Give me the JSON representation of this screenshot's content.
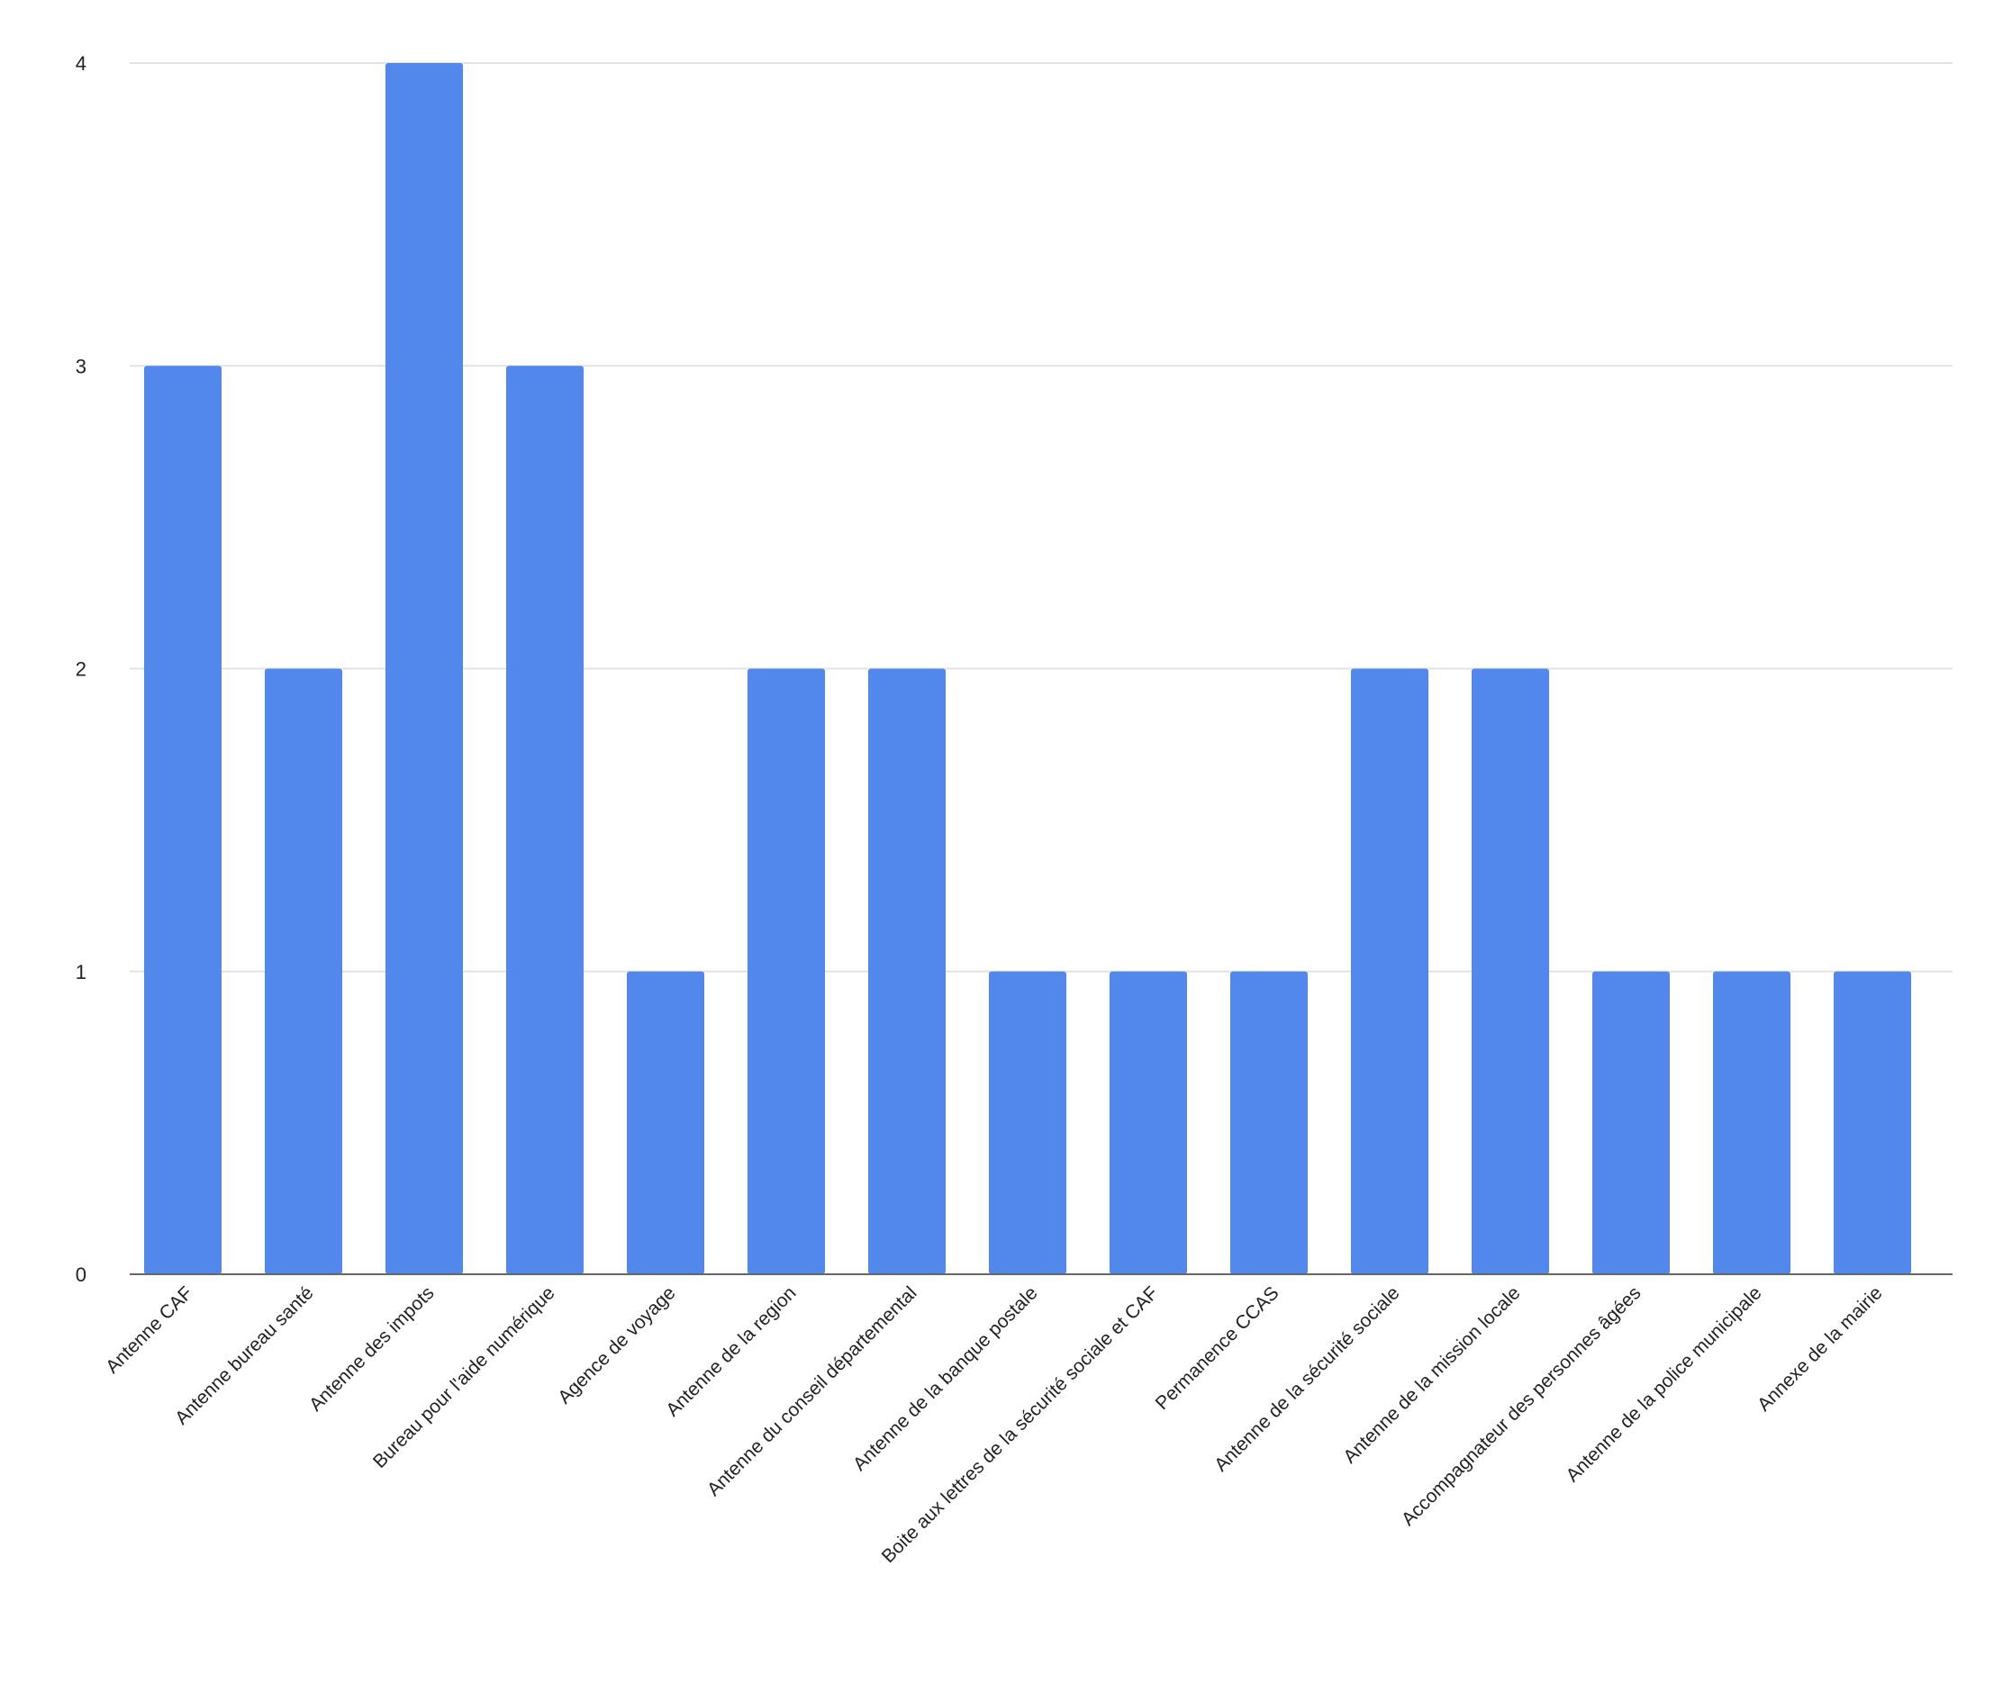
{
  "chart_data": {
    "type": "bar",
    "title": "",
    "xlabel": "",
    "ylabel": "",
    "categories": [
      "Antenne CAF",
      "Antenne bureau santé",
      "Antenne des impots",
      "Bureau pour l'aide numérique",
      "Agence de voyage",
      "Antenne de la region",
      "Antenne du conseil départemental",
      "Antenne de la banque postale",
      "Boite aux lettres de la sécurité sociale et CAF",
      "Permanence CCAS",
      "Antenne de la sécurité sociale",
      "Antenne de la mission locale",
      "Accompagnateur des personnes âgées",
      "Antenne de la police municipale",
      "Annexe de la mairie"
    ],
    "values": [
      3,
      2,
      4,
      3,
      1,
      2,
      2,
      1,
      1,
      1,
      2,
      2,
      1,
      1,
      1
    ],
    "ylim": [
      0,
      4
    ],
    "yticks": [
      "0",
      "1",
      "2",
      "3",
      "4"
    ],
    "grid": true,
    "legend": "none",
    "colors": {
      "bar": "#5287EB",
      "grid": "#E3E3E3",
      "axis": "#666666",
      "text": "#222222"
    }
  }
}
